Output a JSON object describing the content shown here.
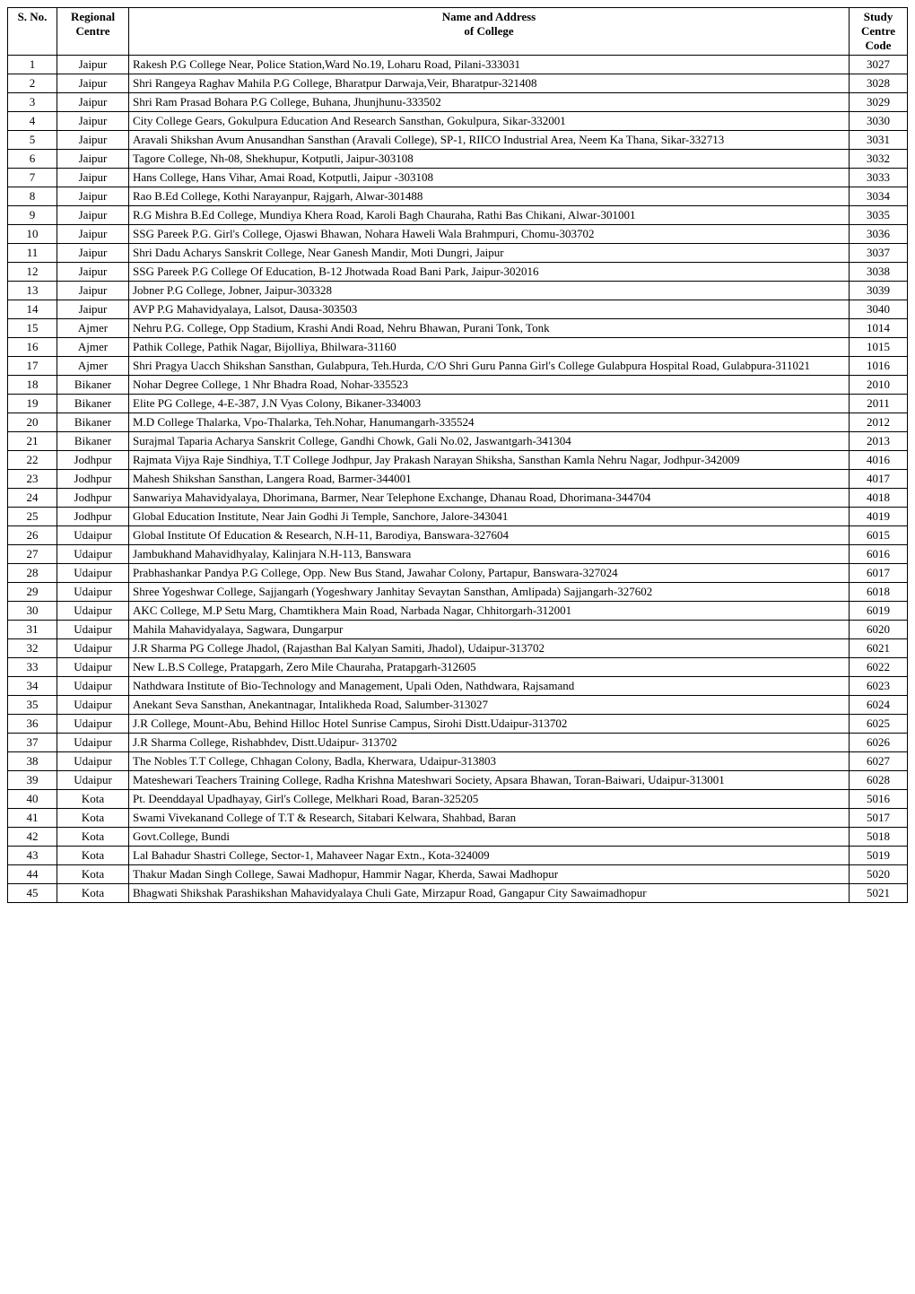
{
  "table": {
    "columns": [
      {
        "label": "S. No."
      },
      {
        "label": "Regional Centre"
      },
      {
        "label_line1": "Name and Address",
        "label_line2": "of College"
      },
      {
        "label_line1": "Study",
        "label_line2": "Centre",
        "label_line3": "Code"
      }
    ],
    "rows": [
      {
        "sno": "1",
        "centre": "Jaipur",
        "addr": "Rakesh P.G College Near, Police Station,Ward No.19, Loharu Road, Pilani-333031",
        "code": "3027"
      },
      {
        "sno": "2",
        "centre": "Jaipur",
        "addr": "Shri Rangeya Raghav Mahila P.G College, Bharatpur Darwaja,Veir, Bharatpur-321408",
        "code": "3028"
      },
      {
        "sno": "3",
        "centre": "Jaipur",
        "addr": "Shri Ram Prasad Bohara P.G College, Buhana, Jhunjhunu-333502",
        "code": "3029"
      },
      {
        "sno": "4",
        "centre": "Jaipur",
        "addr": "City College Gears, Gokulpura Education And Research Sansthan, Gokulpura, Sikar-332001",
        "code": "3030"
      },
      {
        "sno": "5",
        "centre": "Jaipur",
        "addr": "Aravali Shikshan Avum Anusandhan Sansthan (Aravali College), SP-1, RIICO Industrial Area, Neem Ka Thana, Sikar-332713",
        "code": "3031"
      },
      {
        "sno": "6",
        "centre": "Jaipur",
        "addr": "Tagore College, Nh-08, Shekhupur, Kotputli, Jaipur-303108",
        "code": "3032"
      },
      {
        "sno": "7",
        "centre": "Jaipur",
        "addr": "Hans College, Hans Vihar, Amai Road, Kotputli, Jaipur -303108",
        "code": "3033"
      },
      {
        "sno": "8",
        "centre": "Jaipur",
        "addr": "Rao B.Ed College, Kothi Narayanpur, Rajgarh, Alwar-301488",
        "code": "3034"
      },
      {
        "sno": "9",
        "centre": "Jaipur",
        "addr": "R.G Mishra B.Ed College, Mundiya Khera Road, Karoli Bagh Chauraha, Rathi Bas Chikani, Alwar-301001",
        "code": "3035"
      },
      {
        "sno": "10",
        "centre": "Jaipur",
        "addr": "SSG Pareek P.G. Girl's College, Ojaswi Bhawan, Nohara Haweli Wala Brahmpuri, Chomu-303702",
        "code": "3036"
      },
      {
        "sno": "11",
        "centre": "Jaipur",
        "addr": "Shri Dadu Acharys Sanskrit College, Near Ganesh Mandir, Moti Dungri, Jaipur",
        "code": "3037"
      },
      {
        "sno": "12",
        "centre": "Jaipur",
        "addr": "SSG Pareek P.G College Of Education, B-12 Jhotwada Road Bani Park, Jaipur-302016",
        "code": "3038"
      },
      {
        "sno": "13",
        "centre": "Jaipur",
        "addr": "Jobner  P.G College, Jobner, Jaipur-303328",
        "code": "3039"
      },
      {
        "sno": "14",
        "centre": "Jaipur",
        "addr": "AVP P.G Mahavidyalaya, Lalsot, Dausa-303503",
        "code": "3040"
      },
      {
        "sno": "15",
        "centre": "Ajmer",
        "addr": "Nehru P.G. College, Opp Stadium, Krashi Andi Road, Nehru Bhawan, Purani Tonk, Tonk",
        "code": "1014"
      },
      {
        "sno": "16",
        "centre": "Ajmer",
        "addr": "Pathik College, Pathik Nagar, Bijolliya, Bhilwara-31160",
        "code": "1015"
      },
      {
        "sno": "17",
        "centre": "Ajmer",
        "addr": "Shri Pragya Uacch Shikshan Sansthan, Gulabpura, Teh.Hurda, C/O Shri Guru Panna Girl's College Gulabpura Hospital Road, Gulabpura-311021",
        "code": "1016"
      },
      {
        "sno": "18",
        "centre": "Bikaner",
        "addr": "Nohar Degree College, 1 Nhr Bhadra Road, Nohar-335523",
        "code": "2010"
      },
      {
        "sno": "19",
        "centre": "Bikaner",
        "addr": "Elite PG College, 4-E-387, J.N Vyas Colony, Bikaner-334003",
        "code": "2011"
      },
      {
        "sno": "20",
        "centre": "Bikaner",
        "addr": "M.D College Thalarka, Vpo-Thalarka, Teh.Nohar, Hanumangarh-335524",
        "code": "2012"
      },
      {
        "sno": "21",
        "centre": "Bikaner",
        "addr": "Surajmal Taparia Acharya Sanskrit College, Gandhi Chowk, Gali No.02, Jaswantgarh-341304",
        "code": "2013"
      },
      {
        "sno": "22",
        "centre": "Jodhpur",
        "addr": "Rajmata Vijya Raje Sindhiya, T.T College Jodhpur, Jay Prakash Narayan Shiksha, Sansthan Kamla Nehru Nagar, Jodhpur-342009",
        "code": "4016"
      },
      {
        "sno": "23",
        "centre": "Jodhpur",
        "addr": "Mahesh Shikshan Sansthan, Langera Road, Barmer-344001",
        "code": "4017"
      },
      {
        "sno": "24",
        "centre": "Jodhpur",
        "addr": "Sanwariya Mahavidyalaya, Dhorimana, Barmer, Near Telephone Exchange, Dhanau Road, Dhorimana-344704",
        "code": "4018"
      },
      {
        "sno": "25",
        "centre": "Jodhpur",
        "addr": "Global Education Institute, Near Jain Godhi Ji Temple, Sanchore, Jalore-343041",
        "code": "4019"
      },
      {
        "sno": "26",
        "centre": "Udaipur",
        "addr": "Global Institute Of Education & Research, N.H-11, Barodiya, Banswara-327604",
        "code": "6015"
      },
      {
        "sno": "27",
        "centre": "Udaipur",
        "addr": "Jambukhand Mahavidhyalay, Kalinjara  N.H-113, Banswara",
        "code": "6016"
      },
      {
        "sno": "28",
        "centre": "Udaipur",
        "addr": "Prabhashankar Pandya P.G College, Opp. New Bus Stand, Jawahar Colony, Partapur, Banswara-327024",
        "code": "6017"
      },
      {
        "sno": "29",
        "centre": "Udaipur",
        "addr": "Shree Yogeshwar College, Sajjangarh (Yogeshwary Janhitay Sevaytan Sansthan, Amlipada) Sajjangarh-327602",
        "code": "6018"
      },
      {
        "sno": "30",
        "centre": "Udaipur",
        "addr": "AKC College, M.P Setu Marg, Chamtikhera Main Road, Narbada Nagar, Chhitorgarh-312001",
        "code": "6019"
      },
      {
        "sno": "31",
        "centre": "Udaipur",
        "addr": "Mahila Mahavidyalaya, Sagwara, Dungarpur",
        "code": "6020"
      },
      {
        "sno": "32",
        "centre": "Udaipur",
        "addr": "J.R Sharma PG College Jhadol, (Rajasthan Bal Kalyan Samiti, Jhadol), Udaipur-313702",
        "code": "6021"
      },
      {
        "sno": "33",
        "centre": "Udaipur",
        "addr": "New L.B.S College, Pratapgarh, Zero Mile Chauraha, Pratapgarh-312605",
        "code": "6022"
      },
      {
        "sno": "34",
        "centre": "Udaipur",
        "addr": "Nathdwara Institute of Bio-Technology and Management, Upali Oden, Nathdwara, Rajsamand",
        "code": "6023"
      },
      {
        "sno": "35",
        "centre": "Udaipur",
        "addr": "Anekant Seva Sansthan, Anekantnagar, Intalikheda Road, Salumber-313027",
        "code": "6024"
      },
      {
        "sno": "36",
        "centre": "Udaipur",
        "addr": "J.R College, Mount-Abu, Behind Hilloc Hotel Sunrise Campus, Sirohi Distt.Udaipur-313702",
        "code": "6025"
      },
      {
        "sno": "37",
        "centre": "Udaipur",
        "addr": "J.R Sharma College, Rishabhdev, Distt.Udaipur- 313702",
        "code": "6026"
      },
      {
        "sno": "38",
        "centre": "Udaipur",
        "addr": "The Nobles T.T College, Chhagan Colony, Badla, Kherwara, Udaipur-313803",
        "code": "6027"
      },
      {
        "sno": "39",
        "centre": "Udaipur",
        "addr": "Mateshewari Teachers Training College, Radha Krishna Mateshwari Society, Apsara Bhawan, Toran-Baiwari, Udaipur-313001",
        "code": "6028"
      },
      {
        "sno": "40",
        "centre": "Kota",
        "addr": "Pt. Deenddayal Upadhayay, Girl's College, Melkhari Road, Baran-325205",
        "code": "5016"
      },
      {
        "sno": "41",
        "centre": "Kota",
        "addr": "Swami Vivekanand College of T.T & Research, Sitabari Kelwara, Shahbad, Baran",
        "code": "5017"
      },
      {
        "sno": "42",
        "centre": "Kota",
        "addr": "Govt.College, Bundi",
        "code": "5018"
      },
      {
        "sno": "43",
        "centre": "Kota",
        "addr": "Lal Bahadur Shastri College, Sector-1, Mahaveer Nagar Extn., Kota-324009",
        "code": "5019"
      },
      {
        "sno": "44",
        "centre": "Kota",
        "addr": "Thakur Madan Singh College, Sawai Madhopur, Hammir Nagar, Kherda, Sawai Madhopur",
        "code": "5020"
      },
      {
        "sno": "45",
        "centre": "Kota",
        "addr": "Bhagwati Shikshak Parashikshan Mahavidyalaya Chuli Gate, Mirzapur Road, Gangapur City Sawaimadhopur",
        "code": "5021"
      }
    ]
  }
}
